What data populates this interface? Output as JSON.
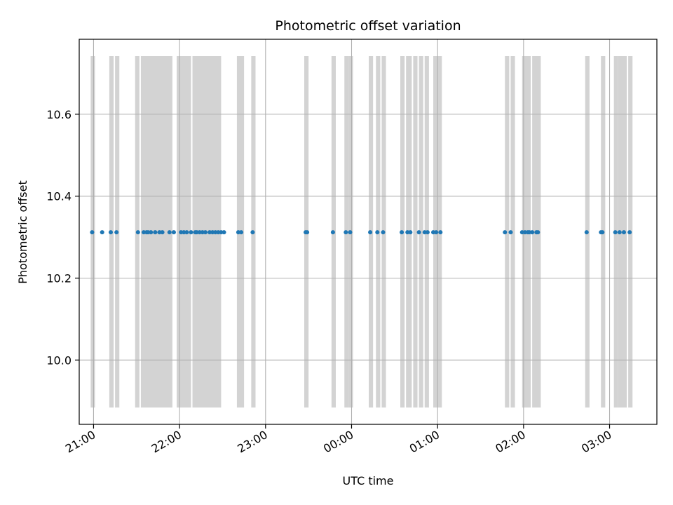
{
  "chart_data": {
    "type": "scatter",
    "title": "Photometric offset variation",
    "xlabel": "UTC time",
    "ylabel": "Photometric offset",
    "x_axis_type": "time",
    "x_range": [
      "20:50",
      "03:33"
    ],
    "ylim": [
      9.843,
      10.783
    ],
    "grid": true,
    "point_color": "#1f77b4",
    "band_color": "#d3d3d3",
    "x_ticks": [
      "21:00",
      "22:00",
      "23:00",
      "00:00",
      "01:00",
      "02:00",
      "03:00"
    ],
    "y_ticks": [
      "10.0",
      "10.2",
      "10.4",
      "10.6"
    ],
    "points_y": 10.312,
    "points_x": [
      "20:59",
      "21:06",
      "21:12",
      "21:16",
      "21:31",
      "21:35",
      "21:37",
      "21:38",
      "21:40",
      "21:43",
      "21:46",
      "21:48",
      "21:53",
      "21:56",
      "22:01",
      "22:03",
      "22:05",
      "22:08",
      "22:11",
      "22:12",
      "22:14",
      "22:16",
      "22:18",
      "22:21",
      "22:23",
      "22:25",
      "22:27",
      "22:29",
      "22:31",
      "22:41",
      "22:43",
      "22:51",
      "23:28",
      "23:29",
      "23:47",
      "23:56",
      "23:59",
      "00:13",
      "00:18",
      "00:22",
      "00:35",
      "00:39",
      "00:41",
      "00:47",
      "00:51",
      "00:53",
      "00:57",
      "00:59",
      "01:02",
      "01:47",
      "01:51",
      "01:59",
      "02:01",
      "02:03",
      "02:04",
      "02:06",
      "02:09",
      "02:10",
      "02:44",
      "02:54",
      "02:55",
      "03:04",
      "03:07",
      "03:10",
      "03:14"
    ],
    "bands": [
      [
        "20:58",
        "21:01"
      ],
      [
        "21:11",
        "21:14"
      ],
      [
        "21:15",
        "21:18"
      ],
      [
        "21:29",
        "21:32"
      ],
      [
        "21:33",
        "21:55"
      ],
      [
        "21:58",
        "22:01"
      ],
      [
        "22:00",
        "22:08"
      ],
      [
        "22:09",
        "22:29"
      ],
      [
        "22:40",
        "22:45"
      ],
      [
        "22:50",
        "22:53"
      ],
      [
        "23:27",
        "23:30"
      ],
      [
        "23:46",
        "23:49"
      ],
      [
        "23:55",
        "23:58"
      ],
      [
        "23:58",
        "24:01"
      ],
      [
        "00:12",
        "00:15"
      ],
      [
        "00:17",
        "00:20"
      ],
      [
        "00:21",
        "00:24"
      ],
      [
        "00:34",
        "00:37"
      ],
      [
        "00:38",
        "00:42"
      ],
      [
        "00:43",
        "00:46"
      ],
      [
        "00:47",
        "00:50"
      ],
      [
        "00:51",
        "00:54"
      ],
      [
        "00:57",
        "01:03"
      ],
      [
        "01:47",
        "01:50"
      ],
      [
        "01:51",
        "01:54"
      ],
      [
        "01:59",
        "02:05"
      ],
      [
        "02:06",
        "02:12"
      ],
      [
        "02:43",
        "02:46"
      ],
      [
        "02:54",
        "02:57"
      ],
      [
        "03:03",
        "03:06"
      ],
      [
        "03:06",
        "03:12"
      ],
      [
        "03:13",
        "03:16"
      ]
    ]
  }
}
